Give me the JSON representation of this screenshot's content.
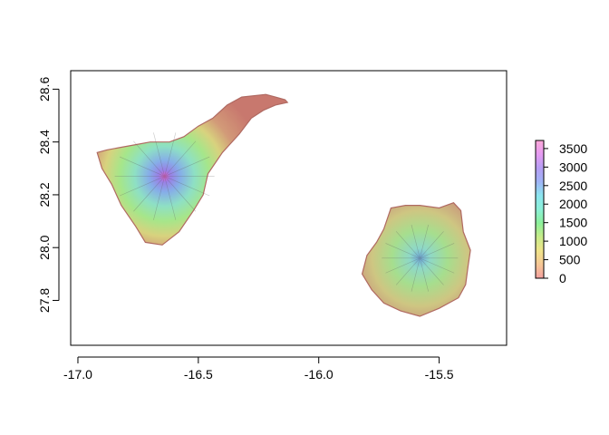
{
  "map": {
    "x_ticks": [
      "-17.0",
      "-16.5",
      "-16.0",
      "-15.5"
    ],
    "x_tick_values": [
      -17.0,
      -16.5,
      -16.0,
      -15.5
    ],
    "y_ticks": [
      "27.8",
      "28.0",
      "28.2",
      "28.4",
      "28.6"
    ],
    "y_tick_values": [
      27.8,
      28.0,
      28.2,
      28.4,
      28.6
    ],
    "xlim": [
      -17.03,
      -15.22
    ],
    "ylim": [
      27.63,
      28.67
    ],
    "islands": [
      {
        "id": "tenerife",
        "outline": [
          [
            -16.92,
            28.36
          ],
          [
            -16.88,
            28.37
          ],
          [
            -16.82,
            28.38
          ],
          [
            -16.76,
            28.39
          ],
          [
            -16.7,
            28.4
          ],
          [
            -16.62,
            28.4
          ],
          [
            -16.56,
            28.42
          ],
          [
            -16.5,
            28.46
          ],
          [
            -16.44,
            28.49
          ],
          [
            -16.38,
            28.54
          ],
          [
            -16.32,
            28.57
          ],
          [
            -16.22,
            28.58
          ],
          [
            -16.18,
            28.57
          ],
          [
            -16.14,
            28.56
          ],
          [
            -16.13,
            28.55
          ],
          [
            -16.18,
            28.54
          ],
          [
            -16.23,
            28.52
          ],
          [
            -16.28,
            28.49
          ],
          [
            -16.33,
            28.43
          ],
          [
            -16.4,
            28.36
          ],
          [
            -16.46,
            28.28
          ],
          [
            -16.48,
            28.2
          ],
          [
            -16.52,
            28.14
          ],
          [
            -16.58,
            28.06
          ],
          [
            -16.65,
            28.01
          ],
          [
            -16.72,
            28.02
          ],
          [
            -16.76,
            28.08
          ],
          [
            -16.82,
            28.16
          ],
          [
            -16.86,
            28.24
          ],
          [
            -16.9,
            28.3
          ]
        ],
        "peak": [
          -16.64,
          28.27
        ]
      },
      {
        "id": "gran-canaria",
        "outline": [
          [
            -15.8,
            27.97
          ],
          [
            -15.76,
            28.02
          ],
          [
            -15.73,
            28.07
          ],
          [
            -15.7,
            28.15
          ],
          [
            -15.64,
            28.16
          ],
          [
            -15.58,
            28.16
          ],
          [
            -15.5,
            28.15
          ],
          [
            -15.44,
            28.17
          ],
          [
            -15.41,
            28.14
          ],
          [
            -15.4,
            28.06
          ],
          [
            -15.37,
            27.99
          ],
          [
            -15.38,
            27.93
          ],
          [
            -15.39,
            27.86
          ],
          [
            -15.42,
            27.81
          ],
          [
            -15.5,
            27.77
          ],
          [
            -15.58,
            27.74
          ],
          [
            -15.66,
            27.76
          ],
          [
            -15.73,
            27.79
          ],
          [
            -15.78,
            27.84
          ],
          [
            -15.82,
            27.9
          ]
        ],
        "peak": [
          -15.58,
          27.96
        ]
      }
    ]
  },
  "legend": {
    "labels": [
      "3500",
      "3000",
      "2500",
      "2000",
      "1500",
      "1000",
      "500",
      "0"
    ],
    "label_values": [
      3500,
      3000,
      2500,
      2000,
      1500,
      1000,
      500,
      0
    ],
    "range": [
      0,
      3718
    ],
    "colors": [
      "#f4a0a0",
      "#f6c896",
      "#f0e48a",
      "#c8ec8a",
      "#8cf09a",
      "#8cf0d8",
      "#8ce6f0",
      "#a0b4f6",
      "#b69ef4",
      "#e69cf2",
      "#fca8d8"
    ]
  }
}
